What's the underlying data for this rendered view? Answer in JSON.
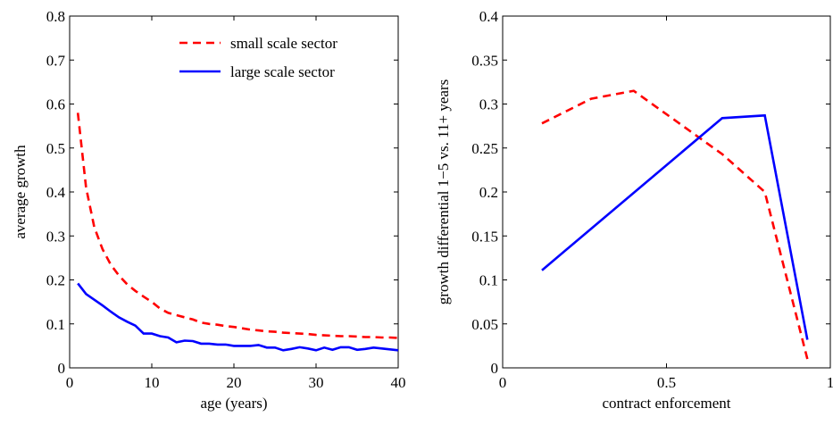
{
  "chart_data": [
    {
      "type": "line",
      "xlabel": "age (years)",
      "ylabel": "average growth",
      "xlim": [
        0,
        40
      ],
      "ylim": [
        0,
        0.8
      ],
      "xticks": [
        0,
        10,
        20,
        30,
        40
      ],
      "yticks": [
        0,
        0.1,
        0.2,
        0.3,
        0.4,
        0.5,
        0.6,
        0.7,
        0.8
      ],
      "xtick_labels": [
        "0",
        "10",
        "20",
        "30",
        "40"
      ],
      "ytick_labels": [
        "0",
        "0.1",
        "0.2",
        "0.3",
        "0.4",
        "0.5",
        "0.6",
        "0.7",
        "0.8"
      ],
      "grid": false,
      "legend": "top-right",
      "series": [
        {
          "name": "small scale sector",
          "color": "#ff0000",
          "style": "dashed",
          "x": [
            1,
            2,
            3,
            4,
            5,
            6,
            7,
            8,
            9,
            10,
            11,
            12,
            13,
            14,
            15,
            16,
            17,
            18,
            19,
            20,
            21,
            22,
            23,
            24,
            25,
            26,
            27,
            28,
            29,
            30,
            31,
            32,
            33,
            34,
            35,
            36,
            37,
            38,
            39,
            40
          ],
          "y": [
            0.58,
            0.41,
            0.32,
            0.27,
            0.235,
            0.21,
            0.19,
            0.175,
            0.162,
            0.15,
            0.135,
            0.125,
            0.12,
            0.115,
            0.11,
            0.103,
            0.1,
            0.098,
            0.095,
            0.093,
            0.09,
            0.087,
            0.085,
            0.083,
            0.082,
            0.08,
            0.079,
            0.078,
            0.077,
            0.075,
            0.074,
            0.073,
            0.072,
            0.072,
            0.071,
            0.07,
            0.07,
            0.069,
            0.069,
            0.068
          ]
        },
        {
          "name": "large scale sector",
          "color": "#0000ff",
          "style": "solid",
          "x": [
            1,
            2,
            3,
            4,
            5,
            6,
            7,
            8,
            9,
            10,
            11,
            12,
            13,
            14,
            15,
            16,
            17,
            18,
            19,
            20,
            21,
            22,
            23,
            24,
            25,
            26,
            27,
            28,
            29,
            30,
            31,
            32,
            33,
            34,
            35,
            36,
            37,
            38,
            39,
            40
          ],
          "y": [
            0.192,
            0.168,
            0.155,
            0.142,
            0.128,
            0.115,
            0.105,
            0.096,
            0.078,
            0.078,
            0.072,
            0.069,
            0.058,
            0.062,
            0.061,
            0.055,
            0.055,
            0.053,
            0.053,
            0.05,
            0.05,
            0.05,
            0.052,
            0.046,
            0.046,
            0.04,
            0.043,
            0.047,
            0.044,
            0.04,
            0.046,
            0.041,
            0.047,
            0.047,
            0.041,
            0.043,
            0.046,
            0.044,
            0.042,
            0.04
          ]
        }
      ]
    },
    {
      "type": "line",
      "xlabel": "contract enforcement",
      "ylabel": "growth differential 1−5 vs. 11+ years",
      "xlim": [
        0,
        1
      ],
      "ylim": [
        0,
        0.4
      ],
      "xticks": [
        0,
        0.5,
        1
      ],
      "yticks": [
        0,
        0.05,
        0.1,
        0.15,
        0.2,
        0.25,
        0.3,
        0.35,
        0.4
      ],
      "xtick_labels": [
        "0",
        "0.5",
        "1"
      ],
      "ytick_labels": [
        "0",
        "0.05",
        "0.1",
        "0.15",
        "0.2",
        "0.25",
        "0.3",
        "0.35",
        "0.4"
      ],
      "grid": false,
      "series": [
        {
          "name": "small scale sector",
          "color": "#ff0000",
          "style": "dashed",
          "x": [
            0.12,
            0.27,
            0.4,
            0.67,
            0.8,
            0.93
          ],
          "y": [
            0.278,
            0.306,
            0.315,
            0.243,
            0.2,
            0.01
          ]
        },
        {
          "name": "large scale sector",
          "color": "#0000ff",
          "style": "solid",
          "x": [
            0.12,
            0.67,
            0.8,
            0.93
          ],
          "y": [
            0.111,
            0.284,
            0.287,
            0.032
          ]
        }
      ]
    }
  ]
}
